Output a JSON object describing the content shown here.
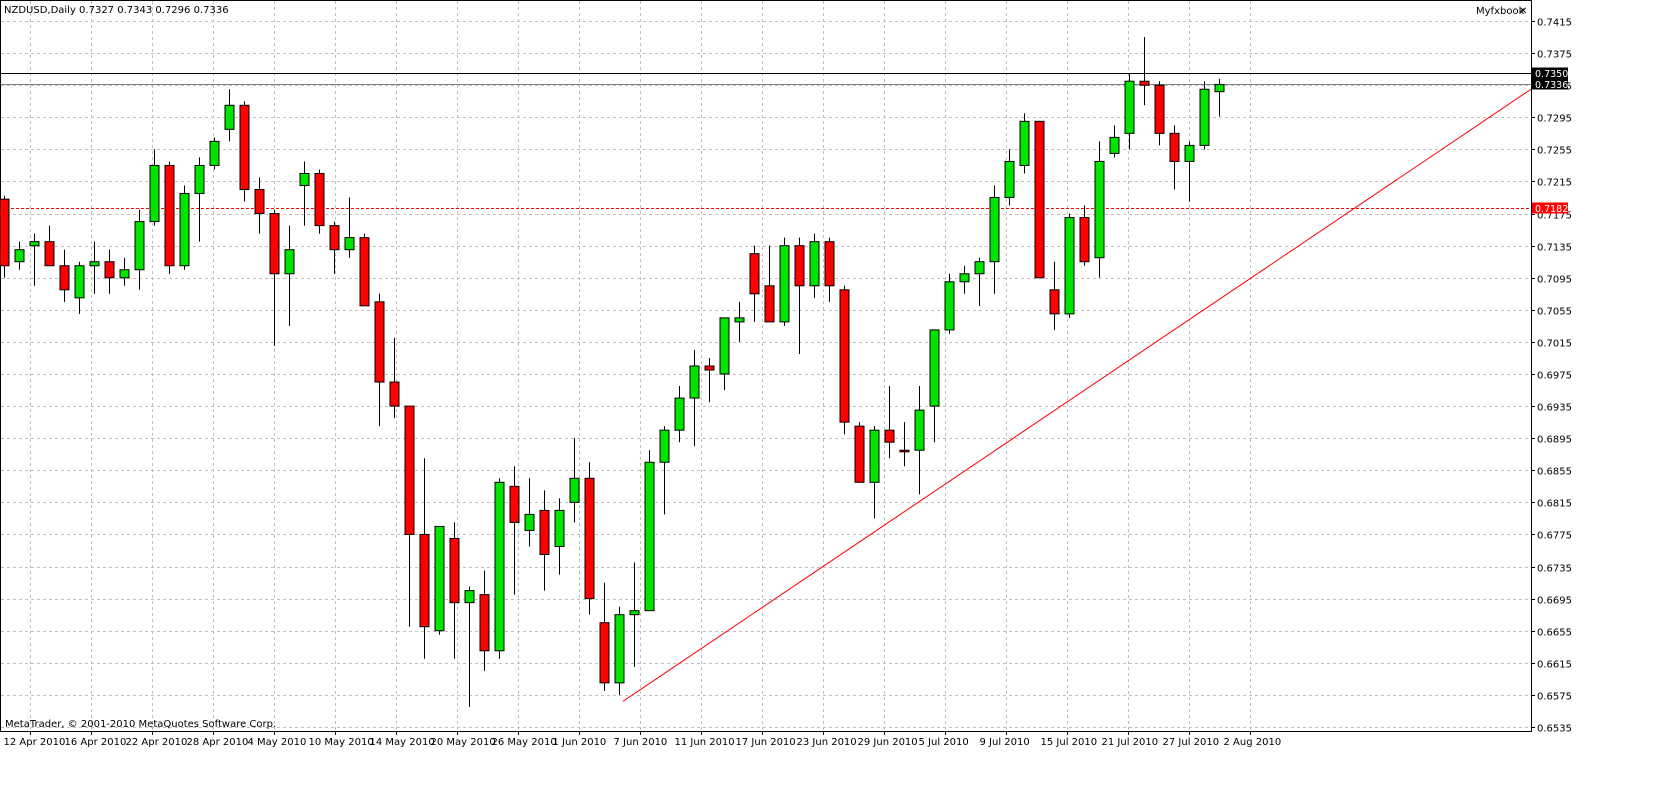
{
  "header": {
    "symbol_info": "NZDUSD,Daily  0.7327 0.7343 0.7296 0.7336",
    "myfxbook_label": "Myfxbook",
    "close_glyph": "✕"
  },
  "footer": {
    "copyright": "MetaTrader, © 2001-2010 MetaQuotes Software Corp."
  },
  "colors": {
    "bull": "#00e400",
    "bear": "#ff0000",
    "grid": "#c0c0c0",
    "trendline": "#ff0000",
    "hline_red": "#ff0000"
  },
  "chart_data": {
    "type": "candlestick",
    "symbol": "NZDUSD",
    "timeframe": "Daily",
    "ylim": [
      0.653,
      0.744
    ],
    "price_ticks": [
      "0.7415",
      "0.7375",
      "0.7335",
      "0.7295",
      "0.7255",
      "0.7215",
      "0.7175",
      "0.7135",
      "0.7095",
      "0.7055",
      "0.7015",
      "0.6975",
      "0.6935",
      "0.6895",
      "0.6855",
      "0.6815",
      "0.6775",
      "0.6735",
      "0.6695",
      "0.6655",
      "0.6615",
      "0.6575",
      "0.6535"
    ],
    "date_labels": [
      "12 Apr 2010",
      "16 Apr 2010",
      "22 Apr 2010",
      "28 Apr 2010",
      "4 May 2010",
      "10 May 2010",
      "14 May 2010",
      "20 May 2010",
      "26 May 2010",
      "1 Jun 2010",
      "7 Jun 2010",
      "11 Jun 2010",
      "17 Jun 2010",
      "23 Jun 2010",
      "29 Jun 2010",
      "5 Jul 2010",
      "9 Jul 2010",
      "15 Jul 2010",
      "21 Jul 2010",
      "27 Jul 2010",
      "2 Aug 2010"
    ],
    "candles": [
      {
        "o": 0.7193,
        "h": 0.7197,
        "l": 0.7095,
        "c": 0.711
      },
      {
        "o": 0.7115,
        "h": 0.714,
        "l": 0.7105,
        "c": 0.713
      },
      {
        "o": 0.7135,
        "h": 0.715,
        "l": 0.7085,
        "c": 0.714
      },
      {
        "o": 0.714,
        "h": 0.716,
        "l": 0.711,
        "c": 0.711
      },
      {
        "o": 0.711,
        "h": 0.713,
        "l": 0.7065,
        "c": 0.708
      },
      {
        "o": 0.707,
        "h": 0.7115,
        "l": 0.705,
        "c": 0.711
      },
      {
        "o": 0.711,
        "h": 0.714,
        "l": 0.7075,
        "c": 0.7115
      },
      {
        "o": 0.7115,
        "h": 0.713,
        "l": 0.7075,
        "c": 0.7095
      },
      {
        "o": 0.7095,
        "h": 0.712,
        "l": 0.7085,
        "c": 0.7105
      },
      {
        "o": 0.7105,
        "h": 0.718,
        "l": 0.708,
        "c": 0.7165
      },
      {
        "o": 0.7165,
        "h": 0.7255,
        "l": 0.716,
        "c": 0.7235
      },
      {
        "o": 0.7235,
        "h": 0.724,
        "l": 0.71,
        "c": 0.711
      },
      {
        "o": 0.711,
        "h": 0.721,
        "l": 0.7105,
        "c": 0.72
      },
      {
        "o": 0.72,
        "h": 0.7245,
        "l": 0.714,
        "c": 0.7235
      },
      {
        "o": 0.7235,
        "h": 0.727,
        "l": 0.723,
        "c": 0.7265
      },
      {
        "o": 0.728,
        "h": 0.733,
        "l": 0.7265,
        "c": 0.731
      },
      {
        "o": 0.731,
        "h": 0.7315,
        "l": 0.719,
        "c": 0.7205
      },
      {
        "o": 0.7205,
        "h": 0.722,
        "l": 0.715,
        "c": 0.7175
      },
      {
        "o": 0.7175,
        "h": 0.718,
        "l": 0.701,
        "c": 0.71
      },
      {
        "o": 0.71,
        "h": 0.716,
        "l": 0.7035,
        "c": 0.713
      },
      {
        "o": 0.721,
        "h": 0.724,
        "l": 0.716,
        "c": 0.7225
      },
      {
        "o": 0.7225,
        "h": 0.723,
        "l": 0.715,
        "c": 0.716
      },
      {
        "o": 0.716,
        "h": 0.7165,
        "l": 0.71,
        "c": 0.713
      },
      {
        "o": 0.713,
        "h": 0.7195,
        "l": 0.712,
        "c": 0.7145
      },
      {
        "o": 0.7145,
        "h": 0.715,
        "l": 0.706,
        "c": 0.706
      },
      {
        "o": 0.7065,
        "h": 0.7075,
        "l": 0.691,
        "c": 0.6965
      },
      {
        "o": 0.6965,
        "h": 0.702,
        "l": 0.692,
        "c": 0.6935
      },
      {
        "o": 0.6935,
        "h": 0.6935,
        "l": 0.666,
        "c": 0.6775
      },
      {
        "o": 0.6775,
        "h": 0.687,
        "l": 0.662,
        "c": 0.666
      },
      {
        "o": 0.6655,
        "h": 0.6785,
        "l": 0.665,
        "c": 0.6785
      },
      {
        "o": 0.677,
        "h": 0.679,
        "l": 0.662,
        "c": 0.669
      },
      {
        "o": 0.669,
        "h": 0.671,
        "l": 0.656,
        "c": 0.6705
      },
      {
        "o": 0.67,
        "h": 0.673,
        "l": 0.6605,
        "c": 0.663
      },
      {
        "o": 0.663,
        "h": 0.6845,
        "l": 0.662,
        "c": 0.684
      },
      {
        "o": 0.6835,
        "h": 0.686,
        "l": 0.67,
        "c": 0.679
      },
      {
        "o": 0.678,
        "h": 0.6845,
        "l": 0.676,
        "c": 0.68
      },
      {
        "o": 0.6805,
        "h": 0.683,
        "l": 0.6705,
        "c": 0.675
      },
      {
        "o": 0.676,
        "h": 0.682,
        "l": 0.6725,
        "c": 0.6805
      },
      {
        "o": 0.6815,
        "h": 0.6895,
        "l": 0.679,
        "c": 0.6845
      },
      {
        "o": 0.6845,
        "h": 0.6865,
        "l": 0.6675,
        "c": 0.6695
      },
      {
        "o": 0.6665,
        "h": 0.6715,
        "l": 0.658,
        "c": 0.659
      },
      {
        "o": 0.659,
        "h": 0.6685,
        "l": 0.6575,
        "c": 0.6675
      },
      {
        "o": 0.6675,
        "h": 0.674,
        "l": 0.661,
        "c": 0.668
      },
      {
        "o": 0.668,
        "h": 0.688,
        "l": 0.668,
        "c": 0.6865
      },
      {
        "o": 0.6865,
        "h": 0.691,
        "l": 0.68,
        "c": 0.6905
      },
      {
        "o": 0.6905,
        "h": 0.696,
        "l": 0.689,
        "c": 0.6945
      },
      {
        "o": 0.6945,
        "h": 0.7005,
        "l": 0.6885,
        "c": 0.6985
      },
      {
        "o": 0.6985,
        "h": 0.6995,
        "l": 0.694,
        "c": 0.698
      },
      {
        "o": 0.6975,
        "h": 0.7045,
        "l": 0.6955,
        "c": 0.7045
      },
      {
        "o": 0.704,
        "h": 0.7065,
        "l": 0.7015,
        "c": 0.7045
      },
      {
        "o": 0.7125,
        "h": 0.7135,
        "l": 0.704,
        "c": 0.7075
      },
      {
        "o": 0.7085,
        "h": 0.7135,
        "l": 0.704,
        "c": 0.704
      },
      {
        "o": 0.704,
        "h": 0.7145,
        "l": 0.7035,
        "c": 0.7135
      },
      {
        "o": 0.7135,
        "h": 0.7145,
        "l": 0.7,
        "c": 0.7085
      },
      {
        "o": 0.7085,
        "h": 0.715,
        "l": 0.707,
        "c": 0.714
      },
      {
        "o": 0.714,
        "h": 0.7145,
        "l": 0.7065,
        "c": 0.7085
      },
      {
        "o": 0.708,
        "h": 0.7085,
        "l": 0.69,
        "c": 0.6915
      },
      {
        "o": 0.691,
        "h": 0.6915,
        "l": 0.684,
        "c": 0.684
      },
      {
        "o": 0.684,
        "h": 0.691,
        "l": 0.6795,
        "c": 0.6905
      },
      {
        "o": 0.6905,
        "h": 0.696,
        "l": 0.687,
        "c": 0.689
      },
      {
        "o": 0.688,
        "h": 0.6915,
        "l": 0.686,
        "c": 0.6878
      },
      {
        "o": 0.688,
        "h": 0.696,
        "l": 0.6825,
        "c": 0.693
      },
      {
        "o": 0.6935,
        "h": 0.7025,
        "l": 0.689,
        "c": 0.703
      },
      {
        "o": 0.703,
        "h": 0.71,
        "l": 0.7025,
        "c": 0.709
      },
      {
        "o": 0.709,
        "h": 0.711,
        "l": 0.7075,
        "c": 0.71
      },
      {
        "o": 0.71,
        "h": 0.712,
        "l": 0.706,
        "c": 0.7115
      },
      {
        "o": 0.7115,
        "h": 0.721,
        "l": 0.7075,
        "c": 0.7195
      },
      {
        "o": 0.7195,
        "h": 0.7255,
        "l": 0.7185,
        "c": 0.724
      },
      {
        "o": 0.7235,
        "h": 0.73,
        "l": 0.7225,
        "c": 0.729
      },
      {
        "o": 0.729,
        "h": 0.729,
        "l": 0.7095,
        "c": 0.7095
      },
      {
        "o": 0.708,
        "h": 0.7115,
        "l": 0.703,
        "c": 0.705
      },
      {
        "o": 0.705,
        "h": 0.7175,
        "l": 0.7045,
        "c": 0.717
      },
      {
        "o": 0.717,
        "h": 0.7185,
        "l": 0.711,
        "c": 0.7115
      },
      {
        "o": 0.712,
        "h": 0.7265,
        "l": 0.7095,
        "c": 0.724
      },
      {
        "o": 0.725,
        "h": 0.7285,
        "l": 0.7245,
        "c": 0.727
      },
      {
        "o": 0.7275,
        "h": 0.735,
        "l": 0.7255,
        "c": 0.734
      },
      {
        "o": 0.734,
        "h": 0.7395,
        "l": 0.731,
        "c": 0.7335
      },
      {
        "o": 0.7335,
        "h": 0.734,
        "l": 0.726,
        "c": 0.7275
      },
      {
        "o": 0.7275,
        "h": 0.7285,
        "l": 0.7205,
        "c": 0.724
      },
      {
        "o": 0.724,
        "h": 0.7265,
        "l": 0.719,
        "c": 0.726
      },
      {
        "o": 0.726,
        "h": 0.734,
        "l": 0.7255,
        "c": 0.733
      },
      {
        "o": 0.7327,
        "h": 0.7343,
        "l": 0.7296,
        "c": 0.7336
      }
    ],
    "price_lines": [
      {
        "label": "0.7350",
        "price": 0.735,
        "style": "solid-black"
      },
      {
        "label": "0.7336",
        "price": 0.7336,
        "style": "solid-gray"
      },
      {
        "label": "0.7182",
        "price": 0.7182,
        "style": "dashed-red"
      }
    ],
    "trendline": {
      "from_bar": 41,
      "from_price": 0.6567,
      "to_price": 0.733
    },
    "grid": true
  }
}
